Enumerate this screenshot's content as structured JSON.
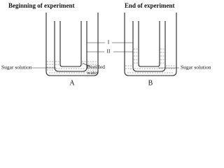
{
  "headings": [
    "Beginning of experiment",
    "End of experiment"
  ],
  "labels": {
    "marker_1": "I",
    "marker_2": "II",
    "left_solution": "Sugar solution",
    "water": "Distilled water",
    "right_solution": "Sugar solution"
  },
  "setups": [
    "A",
    "B"
  ]
}
